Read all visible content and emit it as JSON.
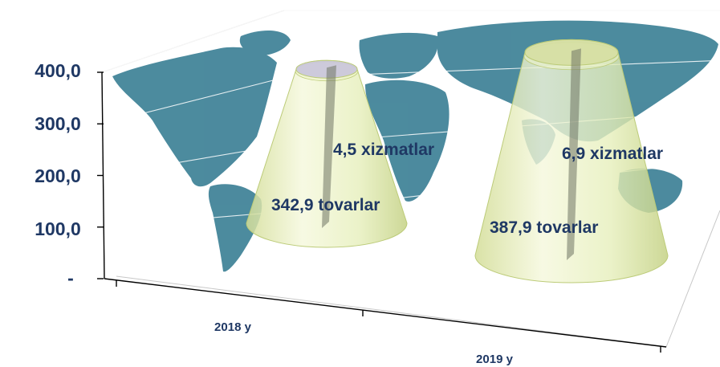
{
  "chart_data": {
    "type": "bar",
    "style": "3d-stacked-cone",
    "categories": [
      "2018 y",
      "2019 y"
    ],
    "series": [
      {
        "values": [
          342.9,
          387.9
        ]
      },
      {
        "values": [
          4.5,
          6.9
        ]
      }
    ],
    "data_labels": [
      [
        "342,9 tovarlar",
        "387,9 tovarlar"
      ],
      [
        "4,5 xizmatlar",
        "6,9 xizmatlar"
      ]
    ],
    "y_ticks": [
      "-",
      "100,0",
      "200,0",
      "300,0",
      "400,0"
    ],
    "ylim": [
      0,
      400
    ],
    "grid": true,
    "legend": "none",
    "background": "world-map",
    "colors": {
      "map": "#3d8196",
      "cone": "#e7efb8",
      "cone_edge": "#bccb78",
      "label": "#1f3864"
    }
  }
}
